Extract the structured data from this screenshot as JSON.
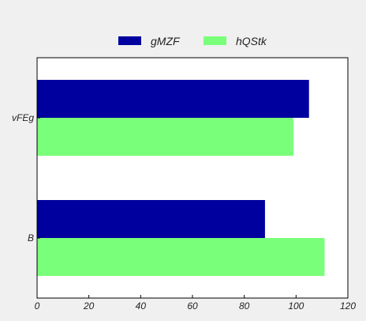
{
  "chart_data": {
    "type": "bar",
    "orientation": "horizontal",
    "categories": [
      "B",
      "vFEg"
    ],
    "series": [
      {
        "name": "gMZF",
        "values": [
          88,
          105
        ],
        "color": "#00009f"
      },
      {
        "name": "hQStk",
        "values": [
          111,
          99
        ],
        "color": "#7aff7a"
      }
    ],
    "xlim": [
      0,
      120
    ],
    "xticks": [
      0,
      20,
      40,
      60,
      80,
      100,
      120
    ],
    "grid": false,
    "legend": "top-center",
    "title": "",
    "xlabel": "",
    "ylabel": ""
  }
}
